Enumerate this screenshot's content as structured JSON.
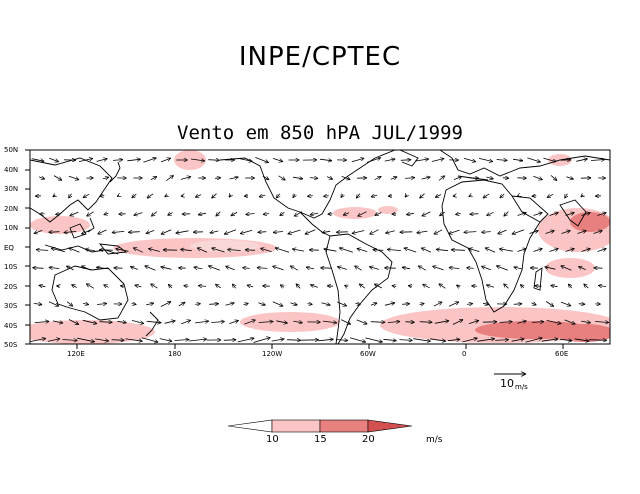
{
  "header": {
    "title": "INPE/CPTEC"
  },
  "map": {
    "title": "Vento em 850 hPA JUL/1999",
    "lat_labels": [
      "50N",
      "40N",
      "30N",
      "20N",
      "10N",
      "EQ",
      "10S",
      "20S",
      "30S",
      "40S",
      "50S"
    ],
    "lon_labels": [
      "120E",
      "180",
      "120W",
      "60W",
      "0",
      "60E"
    ]
  },
  "reference_vector": {
    "value": "10",
    "unit": "m/s"
  },
  "legend": {
    "levels": [
      "10",
      "15",
      "20"
    ],
    "unit": "m/s",
    "colors": [
      "#ffffff",
      "#fcc5c5",
      "#e88080",
      "#d45050"
    ]
  }
}
